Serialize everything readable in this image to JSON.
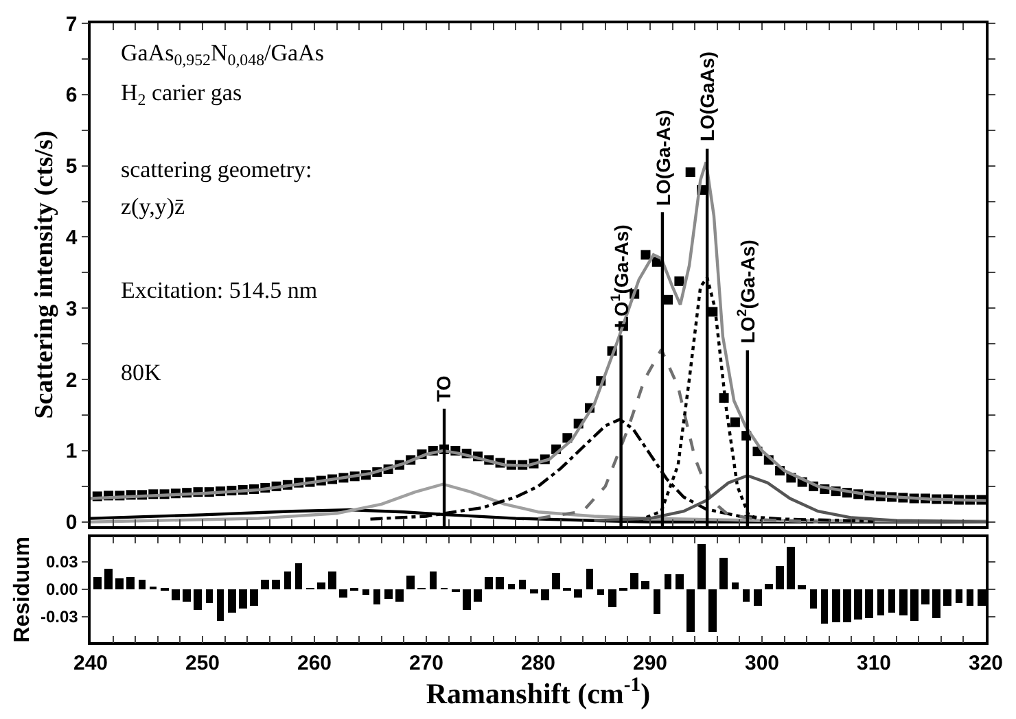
{
  "chart_data": [
    {
      "type": "scatter",
      "ylabel": "Scattering intensity (cts/s)",
      "xlim": [
        240,
        320
      ],
      "ylim": [
        -0.06,
        7
      ],
      "xticks": [
        240,
        {
          "value": 242,
          "label": null
        },
        {
          "value": 244,
          "label": null
        },
        {
          "value": 246,
          "label": null
        },
        {
          "value": 248,
          "label": null
        },
        250,
        {
          "value": 252,
          "label": null
        },
        {
          "value": 254,
          "label": null
        },
        {
          "value": 256,
          "label": null
        },
        {
          "value": 258,
          "label": null
        },
        260,
        {
          "value": 262,
          "label": null
        },
        {
          "value": 264,
          "label": null
        },
        {
          "value": 266,
          "label": null
        },
        {
          "value": 268,
          "label": null
        },
        270,
        {
          "value": 272,
          "label": null
        },
        {
          "value": 274,
          "label": null
        },
        {
          "value": 276,
          "label": null
        },
        {
          "value": 278,
          "label": null
        },
        280,
        {
          "value": 282,
          "label": null
        },
        {
          "value": 284,
          "label": null
        },
        {
          "value": 286,
          "label": null
        },
        {
          "value": 288,
          "label": null
        },
        290,
        {
          "value": 292,
          "label": null
        },
        {
          "value": 294,
          "label": null
        },
        {
          "value": 296,
          "label": null
        },
        {
          "value": 298,
          "label": null
        },
        300,
        {
          "value": 302,
          "label": null
        },
        {
          "value": 304,
          "label": null
        },
        {
          "value": 306,
          "label": null
        },
        {
          "value": 308,
          "label": null
        },
        310,
        {
          "value": 312,
          "label": null
        },
        {
          "value": 314,
          "label": null
        },
        {
          "value": 316,
          "label": null
        },
        {
          "value": 318,
          "label": null
        },
        320
      ],
      "yticks": [
        0,
        {
          "value": 0.5,
          "label": null
        },
        1,
        {
          "value": 1.5,
          "label": null
        },
        2,
        {
          "value": 2.5,
          "label": null
        },
        3,
        {
          "value": 3.5,
          "label": null
        },
        4,
        {
          "value": 4.5,
          "label": null
        },
        5,
        {
          "value": 5.5,
          "label": null
        },
        6,
        {
          "value": 6.5,
          "label": null
        },
        7
      ],
      "tick_labels": "y",
      "series": [
        {
          "type": "line",
          "color": "#000000",
          "line_style": "solid",
          "x": [
            240,
            250,
            258,
            263,
            268,
            272,
            278,
            285,
            290,
            320
          ],
          "values": [
            0.05,
            0.1,
            0.15,
            0.17,
            0.14,
            0.1,
            0.05,
            0.02,
            0.0,
            0.0
          ]
        },
        {
          "type": "line",
          "color": "#a0a0a0",
          "line_style": "solid",
          "x": [
            240,
            255,
            262,
            266,
            269,
            271.5,
            274,
            277,
            280,
            285,
            290,
            300,
            320
          ],
          "values": [
            0.0,
            0.05,
            0.12,
            0.25,
            0.42,
            0.53,
            0.42,
            0.25,
            0.14,
            0.08,
            0.05,
            0.02,
            0.01
          ]
        },
        {
          "type": "line",
          "color": "#000000",
          "line_style": "dashdot",
          "x": [
            265,
            270,
            275,
            278,
            280,
            282,
            284,
            286,
            287.3,
            288.5,
            290,
            291.5,
            293,
            295,
            298,
            302,
            310
          ],
          "values": [
            0.04,
            0.08,
            0.2,
            0.35,
            0.5,
            0.75,
            1.05,
            1.35,
            1.44,
            1.3,
            0.95,
            0.6,
            0.35,
            0.18,
            0.08,
            0.04,
            0.01
          ]
        },
        {
          "type": "line",
          "color": "#707070",
          "line_style": "dashed",
          "x": [
            280,
            284,
            286,
            288,
            289.5,
            291,
            292.5,
            294,
            295.5,
            297,
            300,
            305
          ],
          "values": [
            0.05,
            0.15,
            0.5,
            1.3,
            2.0,
            2.42,
            1.9,
            0.9,
            0.3,
            0.1,
            0.03,
            0.0
          ]
        },
        {
          "type": "line",
          "color": "#000000",
          "line_style": "dotted",
          "x": [
            289,
            291,
            292.5,
            293.5,
            294.5,
            295.1,
            295.8,
            296.8,
            297.8,
            298.8,
            300
          ],
          "values": [
            0.02,
            0.15,
            0.8,
            2.0,
            3.3,
            3.43,
            3.0,
            1.6,
            0.5,
            0.1,
            0.02
          ]
        },
        {
          "type": "line",
          "color": "#555555",
          "line_style": "solid",
          "x": [
            285,
            290,
            293,
            295,
            297,
            298.7,
            300.5,
            302.5,
            305,
            308,
            312,
            320
          ],
          "values": [
            0.02,
            0.05,
            0.15,
            0.3,
            0.55,
            0.65,
            0.55,
            0.33,
            0.15,
            0.06,
            0.02,
            0.0
          ]
        },
        {
          "type": "scatter",
          "color": "#000000",
          "marker": "square",
          "x": [
            240.6,
            241.6,
            242.6,
            243.6,
            244.6,
            245.6,
            246.6,
            247.6,
            248.6,
            249.6,
            250.6,
            251.6,
            252.6,
            253.6,
            254.6,
            255.6,
            256.6,
            257.6,
            258.6,
            259.6,
            260.6,
            261.6,
            262.6,
            263.6,
            264.6,
            265.6,
            266.6,
            267.6,
            268.6,
            269.6,
            270.6,
            271.6,
            272.6,
            273.6,
            274.6,
            275.6,
            276.6,
            277.6,
            278.6,
            279.6,
            280.6,
            281.6,
            282.6,
            283.6,
            284.6,
            285.6,
            286.6,
            287.6,
            288.6,
            289.6,
            290.6,
            291.6,
            292.6,
            293.6,
            294.6,
            295.6,
            296.6,
            297.6,
            298.6,
            299.6,
            300.6,
            301.6,
            302.6,
            303.6,
            304.6,
            305.6,
            306.6,
            307.6,
            308.6,
            309.6,
            310.6,
            311.6,
            312.6,
            313.6,
            314.6,
            315.6,
            316.6,
            317.6,
            318.6,
            319.6
          ],
          "values": [
            0.36,
            0.37,
            0.37,
            0.38,
            0.38,
            0.39,
            0.39,
            0.4,
            0.41,
            0.42,
            0.42,
            0.43,
            0.44,
            0.45,
            0.46,
            0.48,
            0.5,
            0.52,
            0.55,
            0.56,
            0.58,
            0.6,
            0.62,
            0.64,
            0.66,
            0.7,
            0.74,
            0.8,
            0.87,
            0.95,
            1.0,
            1.02,
            1.0,
            0.96,
            0.92,
            0.87,
            0.83,
            0.8,
            0.8,
            0.82,
            0.88,
            1.02,
            1.18,
            1.38,
            1.6,
            1.98,
            2.4,
            2.75,
            3.2,
            3.75,
            3.65,
            3.12,
            3.38,
            4.91,
            4.66,
            2.95,
            1.74,
            1.4,
            1.21,
            0.99,
            0.87,
            0.72,
            0.62,
            0.56,
            0.5,
            0.46,
            0.43,
            0.41,
            0.39,
            0.37,
            0.36,
            0.35,
            0.34,
            0.33,
            0.33,
            0.32,
            0.32,
            0.31,
            0.31,
            0.31
          ]
        },
        {
          "type": "line",
          "color": "#8c8c8c",
          "line_style": "solid",
          "x": [
            240,
            250,
            255,
            260,
            265,
            268,
            270,
            271.5,
            273,
            275,
            277,
            279,
            281,
            283,
            285,
            287,
            289,
            290.3,
            291,
            292,
            292.7,
            293.5,
            294.5,
            295,
            295.7,
            296.5,
            297.5,
            298.5,
            300,
            302,
            305,
            310,
            315,
            320
          ],
          "values": [
            0.33,
            0.4,
            0.45,
            0.56,
            0.68,
            0.82,
            0.95,
            1.0,
            0.96,
            0.88,
            0.8,
            0.79,
            0.88,
            1.15,
            1.65,
            2.5,
            3.4,
            3.75,
            3.7,
            3.3,
            3.05,
            3.6,
            4.8,
            5.05,
            4.3,
            2.6,
            1.7,
            1.35,
            1.0,
            0.72,
            0.5,
            0.37,
            0.32,
            0.3
          ]
        },
        {
          "type": "line",
          "color": "#000000",
          "line_style": "solid",
          "x": [
            271.6,
            271.6
          ],
          "values": [
            -0.06,
            1.59
          ]
        },
        {
          "type": "line",
          "color": "#000000",
          "line_style": "solid",
          "x": [
            287.4,
            287.4
          ],
          "values": [
            -0.06,
            2.62
          ]
        },
        {
          "type": "line",
          "color": "#000000",
          "line_style": "solid",
          "x": [
            291.1,
            291.1
          ],
          "values": [
            -0.06,
            4.35
          ]
        },
        {
          "type": "line",
          "color": "#000000",
          "line_style": "solid",
          "x": [
            295.1,
            295.1
          ],
          "values": [
            -0.06,
            5.24
          ]
        },
        {
          "type": "line",
          "color": "#000000",
          "line_style": "solid",
          "x": [
            298.7,
            298.7
          ],
          "values": [
            -0.06,
            2.41
          ]
        }
      ],
      "annotations": [
        "GaAs$_{0,952}$N$_{0,048}$/GaAs",
        "H$_{2}$ carier gas",
        "scattering geometry:",
        "z(y,y)z̄",
        "Excitation: 514.5 nm",
        "80K",
        {
          "text": "TO",
          "x": 271.6,
          "y": 1.59
        },
        {
          "text": "LO$^{1}$(Ga-As)",
          "x": 287.4,
          "y": 2.62
        },
        {
          "text": "LO(Ga-As)",
          "x": 291.1,
          "y": 4.35
        },
        {
          "text": "LO(GaAs)",
          "x": 295.1,
          "y": 5.24
        },
        {
          "text": "LO$^{2}$(Ga-As)",
          "x": 298.7,
          "y": 2.41
        }
      ]
    },
    {
      "type": "bar",
      "xlabel": "Ramanshift (cm$^{-1}$)",
      "ylabel": "Residuum",
      "xlim": [
        240,
        320
      ],
      "ylim": [
        -0.058,
        0.057
      ],
      "xticks": [
        240,
        {
          "value": 242,
          "label": null
        },
        {
          "value": 244,
          "label": null
        },
        {
          "value": 246,
          "label": null
        },
        {
          "value": 248,
          "label": null
        },
        250,
        {
          "value": 252,
          "label": null
        },
        {
          "value": 254,
          "label": null
        },
        {
          "value": 256,
          "label": null
        },
        {
          "value": 258,
          "label": null
        },
        260,
        {
          "value": 262,
          "label": null
        },
        {
          "value": 264,
          "label": null
        },
        {
          "value": 266,
          "label": null
        },
        {
          "value": 268,
          "label": null
        },
        270,
        {
          "value": 272,
          "label": null
        },
        {
          "value": 274,
          "label": null
        },
        {
          "value": 276,
          "label": null
        },
        {
          "value": 278,
          "label": null
        },
        280,
        {
          "value": 282,
          "label": null
        },
        {
          "value": 284,
          "label": null
        },
        {
          "value": 286,
          "label": null
        },
        {
          "value": 288,
          "label": null
        },
        290,
        {
          "value": 292,
          "label": null
        },
        {
          "value": 294,
          "label": null
        },
        {
          "value": 296,
          "label": null
        },
        {
          "value": 298,
          "label": null
        },
        300,
        {
          "value": 302,
          "label": null
        },
        {
          "value": 304,
          "label": null
        },
        {
          "value": 306,
          "label": null
        },
        {
          "value": 308,
          "label": null
        },
        310,
        {
          "value": 312,
          "label": null
        },
        {
          "value": 314,
          "label": null
        },
        {
          "value": 316,
          "label": null
        },
        {
          "value": 318,
          "label": null
        },
        320
      ],
      "yticks": [
        {
          "value": -0.03,
          "label": "-0.03"
        },
        {
          "value": 0,
          "label": "0.00"
        },
        {
          "value": 0.03,
          "label": "0.03"
        }
      ],
      "color": "#000000",
      "x": [
        240.6,
        241.6,
        242.6,
        243.6,
        244.6,
        245.6,
        246.6,
        247.6,
        248.6,
        249.6,
        250.6,
        251.6,
        252.6,
        253.6,
        254.6,
        255.6,
        256.6,
        257.6,
        258.6,
        259.6,
        260.6,
        261.6,
        262.6,
        263.6,
        264.6,
        265.6,
        266.6,
        267.6,
        268.6,
        269.6,
        270.6,
        271.6,
        272.6,
        273.6,
        274.6,
        275.6,
        276.6,
        277.6,
        278.6,
        279.6,
        280.6,
        281.6,
        282.6,
        283.6,
        284.6,
        285.6,
        286.6,
        287.6,
        288.6,
        289.6,
        290.6,
        291.6,
        292.6,
        293.6,
        294.6,
        295.6,
        296.6,
        297.6,
        298.6,
        299.6,
        300.6,
        301.6,
        302.6,
        303.6,
        304.6,
        305.6,
        306.6,
        307.6,
        308.6,
        309.6,
        310.6,
        311.6,
        312.6,
        313.6,
        314.6,
        315.6,
        316.6,
        317.6,
        318.6,
        319.6
      ],
      "values": [
        0.013,
        0.022,
        0.012,
        0.013,
        0.01,
        0.002,
        -0.002,
        -0.012,
        -0.014,
        -0.022,
        -0.015,
        -0.035,
        -0.025,
        -0.021,
        -0.018,
        0.011,
        0.011,
        0.02,
        0.029,
        0.001,
        0.007,
        0.02,
        -0.009,
        -0.001,
        -0.006,
        -0.017,
        -0.01,
        -0.013,
        0.015,
        0.001,
        0.019,
        0.001,
        -0.003,
        -0.022,
        -0.013,
        0.013,
        0.014,
        0.006,
        0.011,
        -0.004,
        -0.012,
        0.018,
        -0.002,
        -0.009,
        0.023,
        -0.006,
        -0.019,
        -0.001,
        0.018,
        0.009,
        -0.027,
        0.017,
        0.017,
        -0.047,
        0.05,
        -0.046,
        0.034,
        0.008,
        -0.013,
        -0.018,
        0.006,
        0.026,
        0.047,
        0.005,
        -0.021,
        -0.038,
        -0.036,
        -0.036,
        -0.033,
        -0.032,
        -0.029,
        -0.025,
        -0.029,
        -0.034,
        -0.017,
        -0.031,
        -0.018,
        -0.015,
        -0.018,
        -0.018
      ]
    }
  ]
}
